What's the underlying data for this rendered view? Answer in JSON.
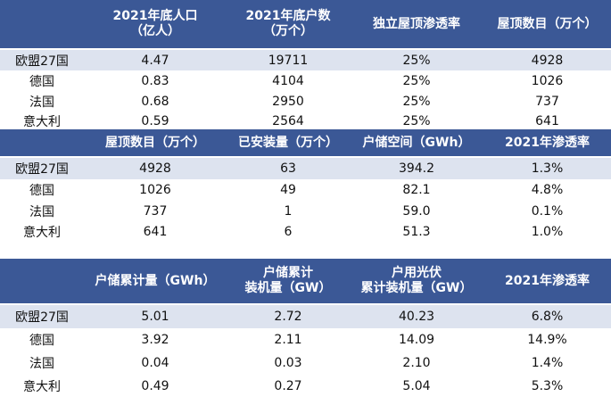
{
  "tables": [
    {
      "header": [
        "",
        "2021年底人口\n（亿人）",
        "2021年底户数\n（万个）",
        "独立屋顶渗透率",
        "屋顶数目（万个）"
      ],
      "rows": [
        [
          "欧盟27国",
          "4.47",
          "19711",
          "25%",
          "4928"
        ],
        [
          "德国",
          "0.83",
          "4104",
          "25%",
          "1026"
        ],
        [
          "法国",
          "0.68",
          "2950",
          "25%",
          "737"
        ],
        [
          "意大利",
          "0.59",
          "2564",
          "25%",
          "641"
        ]
      ]
    },
    {
      "header": [
        "",
        "屋顶数目（万个）",
        "已安装量（万个）",
        "户储空间（GWh）",
        "2021年渗透率"
      ],
      "rows": [
        [
          "欧盟27国",
          "4928",
          "63",
          "394.2",
          "1.3%"
        ],
        [
          "德国",
          "1026",
          "49",
          "82.1",
          "4.8%"
        ],
        [
          "法国",
          "737",
          "1",
          "59.0",
          "0.1%"
        ],
        [
          "意大利",
          "641",
          "6",
          "51.3",
          "1.0%"
        ]
      ]
    },
    {
      "header": [
        "",
        "户储累计量（GWh）",
        "户储累计\n装机量（GW）",
        "户用光伏\n累计装机量（GW）",
        "2021年渗透率"
      ],
      "rows": [
        [
          "欧盟27国",
          "5.01",
          "2.72",
          "40.23",
          "6.8%"
        ],
        [
          "德国",
          "3.92",
          "2.11",
          "14.09",
          "14.9%"
        ],
        [
          "法国",
          "0.04",
          "0.03",
          "2.10",
          "1.4%"
        ],
        [
          "意大利",
          "0.49",
          "0.27",
          "5.04",
          "5.3%"
        ]
      ]
    }
  ],
  "colors": {
    "header_bg": "#3b5896",
    "header_text": "#ffffff",
    "shaded_row": "#dde3ef"
  }
}
